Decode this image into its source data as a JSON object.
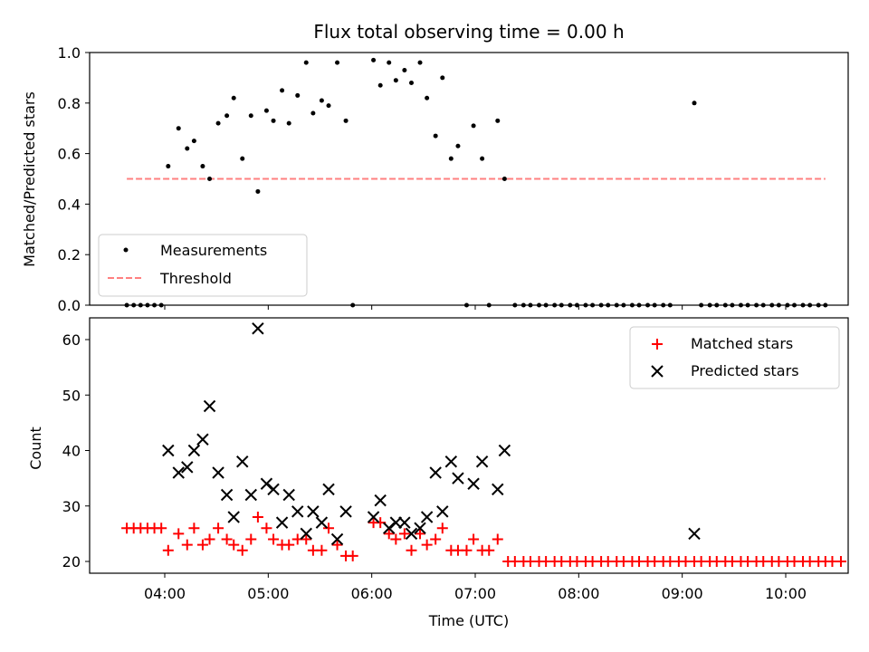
{
  "chart_data": [
    {
      "type": "scatter",
      "title": "Flux total observing time = 0.00 h",
      "ylabel": "Matched/Predicted stars",
      "ylim": [
        0,
        1.0
      ],
      "yticks": [
        "0.0",
        "0.2",
        "0.4",
        "0.6",
        "0.8",
        "1.0"
      ],
      "legend_position": "lower-left",
      "series": [
        {
          "name": "Measurements",
          "style": "dot",
          "color": "#000000",
          "points": [
            [
              "03:38",
              0
            ],
            [
              "03:42",
              0
            ],
            [
              "03:46",
              0
            ],
            [
              "03:50",
              0
            ],
            [
              "03:54",
              0
            ],
            [
              "03:58",
              0
            ],
            [
              "04:02",
              0.55
            ],
            [
              "04:08",
              0.7
            ],
            [
              "04:13",
              0.62
            ],
            [
              "04:17",
              0.65
            ],
            [
              "04:22",
              0.55
            ],
            [
              "04:26",
              0.5
            ],
            [
              "04:31",
              0.72
            ],
            [
              "04:36",
              0.75
            ],
            [
              "04:40",
              0.82
            ],
            [
              "04:45",
              0.58
            ],
            [
              "04:50",
              0.75
            ],
            [
              "04:54",
              0.45
            ],
            [
              "04:59",
              0.77
            ],
            [
              "05:03",
              0.73
            ],
            [
              "05:08",
              0.85
            ],
            [
              "05:12",
              0.72
            ],
            [
              "05:17",
              0.83
            ],
            [
              "05:22",
              0.96
            ],
            [
              "05:26",
              0.76
            ],
            [
              "05:31",
              0.81
            ],
            [
              "05:35",
              0.79
            ],
            [
              "05:40",
              0.96
            ],
            [
              "05:45",
              0.73
            ],
            [
              "05:49",
              0.0
            ],
            [
              "06:01",
              0.97
            ],
            [
              "06:05",
              0.87
            ],
            [
              "06:10",
              0.96
            ],
            [
              "06:14",
              0.89
            ],
            [
              "06:19",
              0.93
            ],
            [
              "06:23",
              0.88
            ],
            [
              "06:28",
              0.96
            ],
            [
              "06:32",
              0.82
            ],
            [
              "06:37",
              0.67
            ],
            [
              "06:41",
              0.9
            ],
            [
              "06:46",
              0.58
            ],
            [
              "06:50",
              0.63
            ],
            [
              "06:55",
              0.0
            ],
            [
              "06:59",
              0.71
            ],
            [
              "07:04",
              0.58
            ],
            [
              "07:08",
              0.0
            ],
            [
              "07:13",
              0.73
            ],
            [
              "07:17",
              0.5
            ],
            [
              "07:23",
              0
            ],
            [
              "07:28",
              0
            ],
            [
              "07:32",
              0
            ],
            [
              "07:37",
              0
            ],
            [
              "07:41",
              0
            ],
            [
              "07:46",
              0
            ],
            [
              "07:50",
              0
            ],
            [
              "07:55",
              0
            ],
            [
              "07:59",
              0
            ],
            [
              "08:04",
              0
            ],
            [
              "08:08",
              0
            ],
            [
              "08:13",
              0
            ],
            [
              "08:17",
              0
            ],
            [
              "08:22",
              0
            ],
            [
              "08:26",
              0
            ],
            [
              "08:31",
              0
            ],
            [
              "08:35",
              0
            ],
            [
              "08:40",
              0
            ],
            [
              "08:44",
              0
            ],
            [
              "08:49",
              0
            ],
            [
              "08:53",
              0
            ],
            [
              "09:07",
              0.8
            ],
            [
              "09:11",
              0
            ],
            [
              "09:16",
              0
            ],
            [
              "09:20",
              0
            ],
            [
              "09:25",
              0
            ],
            [
              "09:29",
              0
            ],
            [
              "09:34",
              0
            ],
            [
              "09:38",
              0
            ],
            [
              "09:43",
              0
            ],
            [
              "09:47",
              0
            ],
            [
              "09:52",
              0
            ],
            [
              "09:56",
              0
            ],
            [
              "10:01",
              0
            ],
            [
              "10:05",
              0
            ],
            [
              "10:10",
              0
            ],
            [
              "10:14",
              0
            ],
            [
              "10:19",
              0
            ],
            [
              "10:23",
              0
            ]
          ]
        },
        {
          "name": "Threshold",
          "style": "dashed-line",
          "color": "#ff8080",
          "points": [
            [
              "03:38",
              0.5
            ],
            [
              "10:23",
              0.5
            ]
          ]
        }
      ]
    },
    {
      "type": "scatter",
      "xlabel": "Time (UTC)",
      "ylabel": "Count",
      "xticks": [
        "04:00",
        "05:00",
        "06:00",
        "07:00",
        "08:00",
        "09:00",
        "10:00"
      ],
      "yticks": [
        "20",
        "30",
        "40",
        "50",
        "60"
      ],
      "legend_position": "upper-right",
      "series": [
        {
          "name": "Matched stars",
          "style": "plus",
          "color": "#ff0000",
          "points": [
            [
              "03:38",
              26
            ],
            [
              "03:42",
              26
            ],
            [
              "03:46",
              26
            ],
            [
              "03:50",
              26
            ],
            [
              "03:54",
              26
            ],
            [
              "03:58",
              26
            ],
            [
              "04:02",
              22
            ],
            [
              "04:08",
              25
            ],
            [
              "04:13",
              23
            ],
            [
              "04:17",
              26
            ],
            [
              "04:22",
              23
            ],
            [
              "04:26",
              24
            ],
            [
              "04:31",
              26
            ],
            [
              "04:36",
              24
            ],
            [
              "04:40",
              23
            ],
            [
              "04:45",
              22
            ],
            [
              "04:50",
              24
            ],
            [
              "04:54",
              28
            ],
            [
              "04:59",
              26
            ],
            [
              "05:03",
              24
            ],
            [
              "05:08",
              23
            ],
            [
              "05:12",
              23
            ],
            [
              "05:17",
              24
            ],
            [
              "05:22",
              24
            ],
            [
              "05:26",
              22
            ],
            [
              "05:31",
              22
            ],
            [
              "05:35",
              26
            ],
            [
              "05:40",
              23
            ],
            [
              "05:45",
              21
            ],
            [
              "05:49",
              21
            ],
            [
              "06:01",
              27
            ],
            [
              "06:05",
              27
            ],
            [
              "06:10",
              25
            ],
            [
              "06:14",
              24
            ],
            [
              "06:19",
              25
            ],
            [
              "06:23",
              22
            ],
            [
              "06:28",
              25
            ],
            [
              "06:32",
              23
            ],
            [
              "06:37",
              24
            ],
            [
              "06:41",
              26
            ],
            [
              "06:46",
              22
            ],
            [
              "06:50",
              22
            ],
            [
              "06:55",
              22
            ],
            [
              "06:59",
              24
            ],
            [
              "07:04",
              22
            ],
            [
              "07:08",
              22
            ],
            [
              "07:13",
              24
            ],
            [
              "07:19",
              20
            ],
            [
              "07:23",
              20
            ],
            [
              "07:28",
              20
            ],
            [
              "07:32",
              20
            ],
            [
              "07:37",
              20
            ],
            [
              "07:41",
              20
            ],
            [
              "07:46",
              20
            ],
            [
              "07:50",
              20
            ],
            [
              "07:55",
              20
            ],
            [
              "07:59",
              20
            ],
            [
              "08:04",
              20
            ],
            [
              "08:08",
              20
            ],
            [
              "08:13",
              20
            ],
            [
              "08:17",
              20
            ],
            [
              "08:22",
              20
            ],
            [
              "08:26",
              20
            ],
            [
              "08:31",
              20
            ],
            [
              "08:35",
              20
            ],
            [
              "08:40",
              20
            ],
            [
              "08:44",
              20
            ],
            [
              "08:49",
              20
            ],
            [
              "08:53",
              20
            ],
            [
              "08:58",
              20
            ],
            [
              "09:02",
              20
            ],
            [
              "09:07",
              20
            ],
            [
              "09:11",
              20
            ],
            [
              "09:16",
              20
            ],
            [
              "09:20",
              20
            ],
            [
              "09:25",
              20
            ],
            [
              "09:29",
              20
            ],
            [
              "09:34",
              20
            ],
            [
              "09:38",
              20
            ],
            [
              "09:43",
              20
            ],
            [
              "09:47",
              20
            ],
            [
              "09:52",
              20
            ],
            [
              "09:56",
              20
            ],
            [
              "10:01",
              20
            ],
            [
              "10:05",
              20
            ],
            [
              "10:10",
              20
            ],
            [
              "10:14",
              20
            ],
            [
              "10:19",
              20
            ],
            [
              "10:23",
              20
            ],
            [
              "10:27",
              20
            ],
            [
              "10:32",
              20
            ]
          ]
        },
        {
          "name": "Predicted stars",
          "style": "x",
          "color": "#000000",
          "points": [
            [
              "04:02",
              40
            ],
            [
              "04:08",
              36
            ],
            [
              "04:13",
              37
            ],
            [
              "04:17",
              40
            ],
            [
              "04:22",
              42
            ],
            [
              "04:26",
              48
            ],
            [
              "04:31",
              36
            ],
            [
              "04:36",
              32
            ],
            [
              "04:40",
              28
            ],
            [
              "04:45",
              38
            ],
            [
              "04:50",
              32
            ],
            [
              "04:54",
              62
            ],
            [
              "04:59",
              34
            ],
            [
              "05:03",
              33
            ],
            [
              "05:08",
              27
            ],
            [
              "05:12",
              32
            ],
            [
              "05:17",
              29
            ],
            [
              "05:22",
              25
            ],
            [
              "05:26",
              29
            ],
            [
              "05:31",
              27
            ],
            [
              "05:35",
              33
            ],
            [
              "05:40",
              24
            ],
            [
              "05:45",
              29
            ],
            [
              "06:01",
              28
            ],
            [
              "06:05",
              31
            ],
            [
              "06:10",
              26
            ],
            [
              "06:14",
              27
            ],
            [
              "06:19",
              27
            ],
            [
              "06:23",
              25
            ],
            [
              "06:28",
              26
            ],
            [
              "06:32",
              28
            ],
            [
              "06:37",
              36
            ],
            [
              "06:41",
              29
            ],
            [
              "06:46",
              38
            ],
            [
              "06:50",
              35
            ],
            [
              "06:59",
              34
            ],
            [
              "07:04",
              38
            ],
            [
              "07:13",
              33
            ],
            [
              "07:17",
              40
            ],
            [
              "09:07",
              25
            ]
          ]
        }
      ]
    }
  ]
}
